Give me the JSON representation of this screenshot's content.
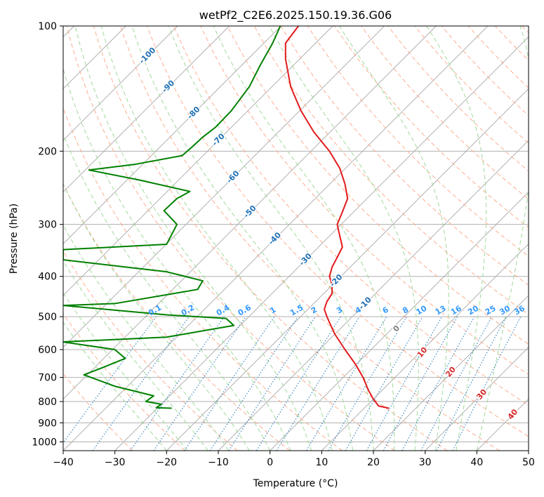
{
  "chart_data": {
    "type": "line",
    "title": "wetPf2_C2E6.2025.150.19.36.G06",
    "xlabel": "Temperature (°C)",
    "ylabel": "Pressure (hPa)",
    "xlim": [
      -40,
      50
    ],
    "ylim": [
      1050,
      100
    ],
    "y_scale": "log",
    "grid": true,
    "x_ticks": [
      -40,
      -30,
      -20,
      -10,
      0,
      10,
      20,
      30,
      40,
      50
    ],
    "x_tick_labels": [
      "−40",
      "−30",
      "−20",
      "−10",
      "0",
      "10",
      "20",
      "30",
      "40",
      "50"
    ],
    "y_ticks": [
      100,
      200,
      300,
      400,
      500,
      600,
      700,
      800,
      900,
      1000
    ],
    "y_tick_labels": [
      "100",
      "200",
      "300",
      "400",
      "500",
      "600",
      "700",
      "800",
      "900",
      "1000"
    ],
    "series": [
      {
        "color": "#e31a1c",
        "points": [
          [
            23.0,
            830
          ],
          [
            21.0,
            820
          ],
          [
            20.0,
            790
          ],
          [
            19.0,
            750
          ],
          [
            18.0,
            700
          ],
          [
            16.5,
            650
          ],
          [
            14.5,
            600
          ],
          [
            12.5,
            550
          ],
          [
            11.0,
            500
          ],
          [
            10.5,
            480
          ],
          [
            11.0,
            460
          ],
          [
            12.0,
            440
          ],
          [
            12.0,
            420
          ],
          [
            11.5,
            400
          ],
          [
            12.0,
            380
          ],
          [
            13.0,
            360
          ],
          [
            14.0,
            340
          ],
          [
            13.5,
            320
          ],
          [
            13.0,
            300
          ],
          [
            14.0,
            280
          ],
          [
            15.0,
            260
          ],
          [
            14.5,
            240
          ],
          [
            13.5,
            220
          ],
          [
            11.5,
            200
          ],
          [
            8.5,
            180
          ],
          [
            6.0,
            160
          ],
          [
            4.0,
            140
          ],
          [
            3.0,
            120
          ],
          [
            3.0,
            110
          ],
          [
            5.5,
            100
          ]
        ]
      },
      {
        "color": "#008000",
        "points": [
          [
            -19.0,
            830
          ],
          [
            -22.0,
            828
          ],
          [
            -21.0,
            812
          ],
          [
            -24.0,
            800
          ],
          [
            -22.5,
            775
          ],
          [
            -30.0,
            735
          ],
          [
            -36.0,
            690
          ],
          [
            -32.0,
            660
          ],
          [
            -28.0,
            630
          ],
          [
            -30.0,
            600
          ],
          [
            -40.0,
            575
          ],
          [
            -20.0,
            560
          ],
          [
            -7.0,
            525
          ],
          [
            -8.5,
            505
          ],
          [
            -20.0,
            495
          ],
          [
            -40.0,
            470
          ],
          [
            -30.0,
            465
          ],
          [
            -14.0,
            430
          ],
          [
            -13.0,
            410
          ],
          [
            -20.0,
            390
          ],
          [
            -40.0,
            365
          ],
          [
            -40.0,
            345
          ],
          [
            -20.0,
            335
          ],
          [
            -18.0,
            300
          ],
          [
            -20.5,
            278
          ],
          [
            -18.0,
            260
          ],
          [
            -15.5,
            250
          ],
          [
            -25.0,
            235
          ],
          [
            -35.0,
            222
          ],
          [
            -26.0,
            215
          ],
          [
            -17.0,
            205
          ],
          [
            -15.0,
            195
          ],
          [
            -13.0,
            185
          ],
          [
            -10.5,
            175
          ],
          [
            -7.5,
            160
          ],
          [
            -4.0,
            140
          ],
          [
            -2.0,
            125
          ],
          [
            0.5,
            110
          ],
          [
            2.0,
            100
          ]
        ]
      }
    ],
    "background_lines": {
      "isotherm_colors": [
        "#b0b0b0"
      ],
      "dry_adiabat_color": "#fcae91",
      "moist_adiabat_color": "#a1d99b",
      "mixing_ratio_color": "#3182bd",
      "temp_label_color": "#2171b5",
      "dry_label_color": "#d62728",
      "mix_label_color": "#3399ff"
    },
    "isotherm_label_values": [
      -100,
      -90,
      -80,
      -70,
      -60,
      -50,
      -40,
      -30,
      -20,
      -10
    ],
    "isotherm_label_pressures": [
      118,
      140,
      162,
      188,
      231,
      280,
      325,
      365,
      410,
      465
    ],
    "isotherm_labels": [
      "-100",
      "-90",
      "-80",
      "-70",
      "-60",
      "-50",
      "-40",
      "-30",
      "-20",
      "-10"
    ],
    "dry_adiabat_label_values": [
      0,
      10,
      20,
      30,
      40
    ],
    "dry_adiabat_labels": [
      "0",
      "10",
      "20",
      "30",
      "40"
    ],
    "mixing_ratio_values": [
      0.1,
      0.2,
      0.4,
      0.6,
      1,
      1.5,
      2,
      3,
      4,
      6,
      8,
      10,
      13,
      16,
      20,
      25,
      30,
      36
    ],
    "mixing_ratio_labels": [
      "0.1",
      "0.2",
      "0.4",
      "0.6",
      "1",
      "1.5",
      "2",
      "3",
      "4",
      "6",
      "8",
      "10",
      "13",
      "16",
      "20",
      "25",
      "30",
      "36"
    ]
  }
}
